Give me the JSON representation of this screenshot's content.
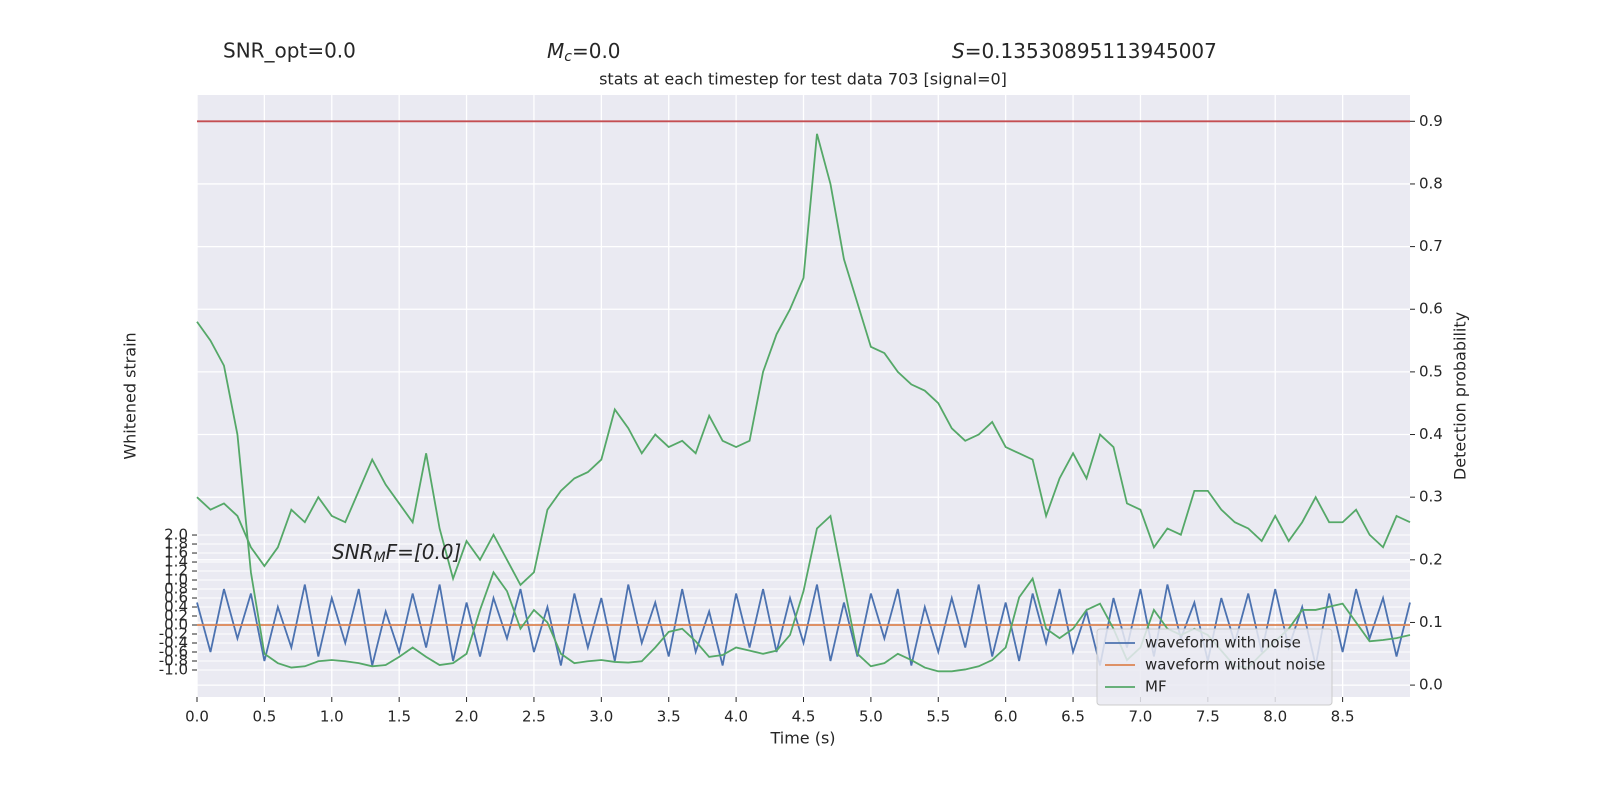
{
  "chart_data": {
    "type": "line",
    "header": [
      {
        "text": "SNR_opt=0.0"
      },
      {
        "symbol": "M",
        "subscript": "c",
        "text": "=0.0"
      },
      {
        "symbol": "S",
        "text": "=0.13530895113945007"
      }
    ],
    "title": "stats at each timestep for test data 703 [signal=0]",
    "annotation": {
      "symbol": "SNR",
      "subscript": "M",
      "text": "F=[0.0]"
    },
    "xlabel": "Time (s)",
    "ylabel": "Whitened strain",
    "y2label": "Detection probability",
    "xlim": [
      0,
      9
    ],
    "ylim": [
      -1.6,
      11.78
    ],
    "y2lim": [
      -0.019,
      0.942
    ],
    "xticks": [
      {
        "value": 0,
        "label": "0.0"
      },
      0.5,
      {
        "value": 1,
        "label": "1.0"
      },
      1.5,
      {
        "value": 2,
        "label": "2.0"
      },
      2.5,
      {
        "value": 3,
        "label": "3.0"
      },
      3.5,
      {
        "value": 4,
        "label": "4.0"
      },
      4.5,
      {
        "value": 5,
        "label": "5.0"
      },
      5.5,
      {
        "value": 6,
        "label": "6.0"
      },
      6.5,
      {
        "value": 7,
        "label": "7.0"
      },
      7.5,
      {
        "value": 8,
        "label": "8.0"
      },
      8.5
    ],
    "yticks": [
      {
        "value": -1,
        "label": "-1.0"
      },
      -0.8,
      -0.6,
      -0.4,
      -0.2,
      {
        "value": 0,
        "label": "0.0"
      },
      0.2,
      0.4,
      0.6,
      0.8,
      {
        "value": 1,
        "label": "1.0"
      },
      1.2,
      1.4,
      1.6,
      1.8,
      {
        "value": 2,
        "label": "2.0"
      }
    ],
    "y2ticks": [
      {
        "value": 0,
        "label": "0.0"
      },
      0.1,
      0.2,
      0.3,
      0.4,
      0.5,
      0.6,
      0.7,
      0.8,
      0.9
    ],
    "grid": true,
    "legend": "lower right",
    "x": [
      0,
      0.1,
      0.2,
      0.3,
      0.4,
      0.5,
      0.6,
      0.7,
      0.8,
      0.9,
      1,
      1.1,
      1.2,
      1.3,
      1.4,
      1.5,
      1.6,
      1.7,
      1.8,
      1.9,
      2,
      2.1,
      2.2,
      2.3,
      2.4,
      2.5,
      2.6,
      2.7,
      2.8,
      2.9,
      3,
      3.1,
      3.2,
      3.3,
      3.4,
      3.5,
      3.6,
      3.7,
      3.8,
      3.9,
      4,
      4.1,
      4.2,
      4.3,
      4.4,
      4.5,
      4.6,
      4.7,
      4.8,
      4.9,
      5,
      5.1,
      5.2,
      5.3,
      5.4,
      5.5,
      5.6,
      5.7,
      5.8,
      5.9,
      6,
      6.1,
      6.2,
      6.3,
      6.4,
      6.5,
      6.6,
      6.7,
      6.8,
      6.9,
      7,
      7.1,
      7.2,
      7.3,
      7.4,
      7.5,
      7.6,
      7.7,
      7.8,
      7.9,
      8,
      8.1,
      8.2,
      8.3,
      8.4,
      8.5,
      8.6,
      8.7,
      8.8,
      8.9,
      9
    ],
    "series": [
      {
        "name": "waveform with noise",
        "color": "#4c72b0",
        "axis": "y",
        "values": [
          0.5,
          -0.6,
          0.8,
          -0.3,
          0.7,
          -0.8,
          0.4,
          -0.5,
          0.9,
          -0.7,
          0.6,
          -0.4,
          0.8,
          -0.9,
          0.3,
          -0.6,
          0.7,
          -0.5,
          0.9,
          -0.8,
          0.5,
          -0.7,
          0.6,
          -0.3,
          0.8,
          -0.6,
          0.4,
          -0.9,
          0.7,
          -0.5,
          0.6,
          -0.8,
          0.9,
          -0.4,
          0.5,
          -0.7,
          0.8,
          -0.6,
          0.3,
          -0.9,
          0.7,
          -0.5,
          0.8,
          -0.6,
          0.6,
          -0.4,
          0.9,
          -0.8,
          0.5,
          -0.7,
          0.7,
          -0.3,
          0.8,
          -0.9,
          0.4,
          -0.6,
          0.6,
          -0.5,
          0.9,
          -0.7,
          0.5,
          -0.8,
          0.7,
          -0.4,
          0.8,
          -0.6,
          0.3,
          -0.9,
          0.6,
          -0.5,
          0.8,
          -0.7,
          0.9,
          -0.3,
          0.5,
          -0.8,
          0.6,
          -0.4,
          0.7,
          -0.6,
          0.8,
          -0.5,
          0.4,
          -0.9,
          0.7,
          -0.6,
          0.8,
          -0.3,
          0.6,
          -0.7,
          0.5
        ]
      },
      {
        "name": "waveform without noise",
        "color": "#dd8452",
        "axis": "y",
        "x": [
          0,
          9
        ],
        "values": [
          0,
          0
        ]
      },
      {
        "name": "MF",
        "color": "#55a868",
        "axis": "y2",
        "values": [
          0.58,
          0.55,
          0.51,
          0.4,
          0.18,
          0.05,
          0.035,
          0.028,
          0.03,
          0.038,
          0.04,
          0.038,
          0.035,
          0.03,
          0.032,
          0.045,
          0.06,
          0.045,
          0.032,
          0.035,
          0.05,
          0.12,
          0.18,
          0.15,
          0.09,
          0.12,
          0.1,
          0.05,
          0.035,
          0.038,
          0.04,
          0.037,
          0.036,
          0.038,
          0.06,
          0.085,
          0.09,
          0.07,
          0.045,
          0.048,
          0.06,
          0.055,
          0.05,
          0.055,
          0.08,
          0.15,
          0.25,
          0.27,
          0.16,
          0.05,
          0.03,
          0.035,
          0.05,
          0.04,
          0.028,
          0.022,
          0.022,
          0.025,
          0.03,
          0.04,
          0.06,
          0.14,
          0.17,
          0.09,
          0.075,
          0.09,
          0.12,
          0.13,
          0.09,
          0.04,
          0.06,
          0.12,
          0.09,
          0.08,
          0.09,
          0.08,
          0.055,
          0.03,
          0.028,
          0.05,
          0.07,
          0.09,
          0.12,
          0.12,
          0.125,
          0.13,
          0.1,
          0.07,
          0.072,
          0.075,
          0.08
        ]
      },
      {
        "color": "#55a868",
        "axis": "y2",
        "values": [
          0.3,
          0.28,
          0.29,
          0.27,
          0.22,
          0.19,
          0.22,
          0.28,
          0.26,
          0.3,
          0.27,
          0.26,
          0.31,
          0.36,
          0.32,
          0.29,
          0.26,
          0.37,
          0.25,
          0.17,
          0.23,
          0.2,
          0.24,
          0.2,
          0.16,
          0.18,
          0.28,
          0.31,
          0.33,
          0.34,
          0.36,
          0.44,
          0.41,
          0.37,
          0.4,
          0.38,
          0.39,
          0.37,
          0.43,
          0.39,
          0.38,
          0.39,
          0.5,
          0.56,
          0.6,
          0.65,
          0.88,
          0.8,
          0.68,
          0.61,
          0.54,
          0.53,
          0.5,
          0.48,
          0.47,
          0.45,
          0.41,
          0.39,
          0.4,
          0.42,
          0.38,
          0.37,
          0.36,
          0.27,
          0.33,
          0.37,
          0.33,
          0.4,
          0.38,
          0.29,
          0.28,
          0.22,
          0.25,
          0.24,
          0.31,
          0.31,
          0.28,
          0.26,
          0.25,
          0.23,
          0.27,
          0.23,
          0.26,
          0.3,
          0.26,
          0.26,
          0.28,
          0.24,
          0.22,
          0.27,
          0.26
        ]
      },
      {
        "color": "#c44e52",
        "axis": "y2",
        "x": [
          0,
          9
        ],
        "values": [
          0.9,
          0.9
        ]
      }
    ]
  }
}
